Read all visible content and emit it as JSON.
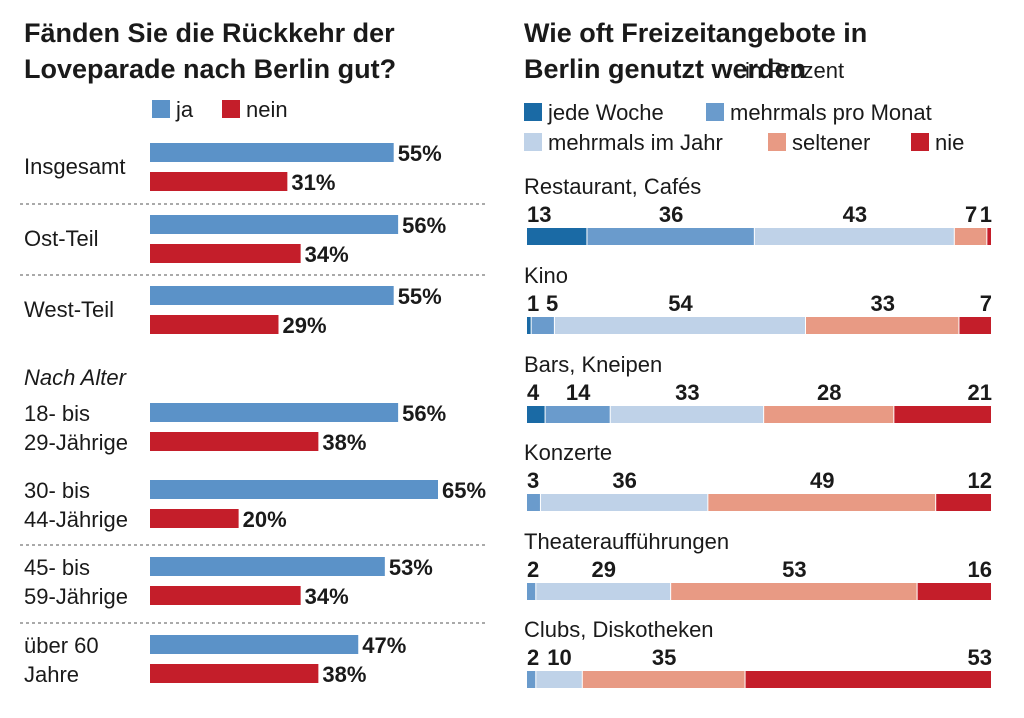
{
  "chart_data": [
    {
      "type": "bar",
      "title": "Fänden Sie die Rückkehr der Loveparade nach Berlin gut?",
      "unit": "%",
      "legend": [
        {
          "label": "ja",
          "color": "#5b92c8"
        },
        {
          "label": "nein",
          "color": "#c41e2a"
        }
      ],
      "group_heading": "Nach Alter",
      "categories": [
        {
          "label": [
            "Insgesamt"
          ],
          "ja": 55,
          "nein": 31
        },
        {
          "label": [
            "Ost-Teil"
          ],
          "ja": 56,
          "nein": 34
        },
        {
          "label": [
            "West-Teil"
          ],
          "ja": 55,
          "nein": 29
        },
        {
          "label": [
            "18- bis",
            "29-Jährige"
          ],
          "ja": 56,
          "nein": 38
        },
        {
          "label": [
            "30- bis",
            "44-Jährige"
          ],
          "ja": 65,
          "nein": 20
        },
        {
          "label": [
            "45- bis",
            "59-Jährige"
          ],
          "ja": 53,
          "nein": 34
        },
        {
          "label": [
            "über 60",
            "Jahre"
          ],
          "ja": 47,
          "nein": 38
        }
      ]
    },
    {
      "type": "bar",
      "stacked": true,
      "title": "Wie oft Freizeitangebote in Berlin genutzt werden",
      "subtitle": "in Prozent",
      "series": [
        {
          "name": "jede Woche",
          "color": "#1a6aa5"
        },
        {
          "name": "mehrmals pro Monat",
          "color": "#6a9bcc"
        },
        {
          "name": "mehrmals im Jahr",
          "color": "#bfd2e8"
        },
        {
          "name": "seltener",
          "color": "#e89a84"
        },
        {
          "name": "nie",
          "color": "#c41e2a"
        }
      ],
      "categories": [
        {
          "label": "Restaurant, Cafés",
          "values": [
            13,
            36,
            43,
            7,
            1
          ]
        },
        {
          "label": "Kino",
          "values": [
            1,
            5,
            54,
            33,
            7
          ]
        },
        {
          "label": "Bars, Kneipen",
          "values": [
            4,
            14,
            33,
            28,
            21
          ]
        },
        {
          "label": "Konzerte",
          "values": [
            0,
            3,
            36,
            49,
            12
          ]
        },
        {
          "label": "Theateraufführungen",
          "values": [
            0,
            2,
            29,
            53,
            16
          ]
        },
        {
          "label": "Clubs, Diskotheken",
          "values": [
            0,
            2,
            10,
            35,
            53
          ]
        }
      ]
    }
  ]
}
